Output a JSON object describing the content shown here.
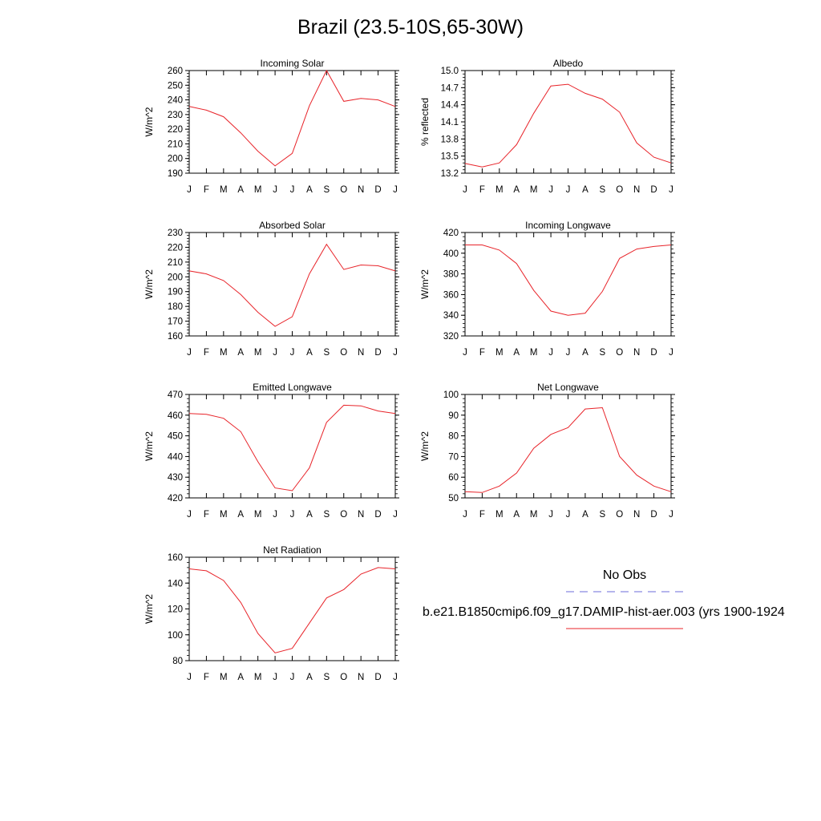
{
  "title": "Brazil (23.5-10S,65-30W)",
  "months": [
    "J",
    "F",
    "M",
    "A",
    "M",
    "J",
    "J",
    "A",
    "S",
    "O",
    "N",
    "D",
    "J"
  ],
  "colors": {
    "model": "#e8242a",
    "obs": "#6b6bd8"
  },
  "legend": {
    "obs_label": "No Obs",
    "model_label": "b.e21.B1850cmip6.f09_g17.DAMIP-hist-aer.003 (yrs 1900-1924"
  },
  "chart_data": [
    {
      "type": "line",
      "title": "Incoming Solar",
      "ylabel": "W/m^2",
      "ylim": [
        190,
        260
      ],
      "yticks": [
        190,
        200,
        210,
        220,
        230,
        240,
        250,
        260
      ],
      "series": [
        {
          "values": [
            235.5,
            233,
            228.5,
            217.5,
            205,
            195,
            203.5,
            236,
            260,
            239,
            241,
            240,
            235.5
          ]
        }
      ]
    },
    {
      "type": "line",
      "title": "Albedo",
      "ylabel": "% reflected",
      "ylim": [
        13.2,
        15.0
      ],
      "yticks": [
        "13.2",
        "13.5",
        "13.8",
        "14.1",
        "14.4",
        "14.7",
        "15.0"
      ],
      "series": [
        {
          "values": [
            13.37,
            13.31,
            13.38,
            13.7,
            14.25,
            14.73,
            14.76,
            14.6,
            14.5,
            14.27,
            13.73,
            13.48,
            13.38
          ]
        }
      ]
    },
    {
      "type": "line",
      "title": "Absorbed Solar",
      "ylabel": "W/m^2",
      "ylim": [
        160,
        230
      ],
      "yticks": [
        160,
        170,
        180,
        190,
        200,
        210,
        220,
        230
      ],
      "series": [
        {
          "values": [
            204,
            202,
            197.5,
            188,
            176,
            166.5,
            173,
            202,
            222,
            205,
            208,
            207.5,
            204
          ]
        }
      ]
    },
    {
      "type": "line",
      "title": "Incoming Longwave",
      "ylabel": "W/m^2",
      "ylim": [
        320,
        420
      ],
      "yticks": [
        320,
        340,
        360,
        380,
        400,
        420
      ],
      "series": [
        {
          "values": [
            408,
            408,
            403,
            390,
            364,
            344,
            340,
            342,
            363,
            395,
            404,
            406.5,
            408
          ]
        }
      ]
    },
    {
      "type": "line",
      "title": "Emitted Longwave",
      "ylabel": "W/m^2",
      "ylim": [
        420,
        470
      ],
      "yticks": [
        420,
        430,
        440,
        450,
        460,
        470
      ],
      "series": [
        {
          "values": [
            460.8,
            460.4,
            458.5,
            452,
            437.5,
            424.8,
            423.5,
            434.5,
            456.5,
            464.8,
            464.5,
            462,
            460.8
          ]
        }
      ]
    },
    {
      "type": "line",
      "title": "Net Longwave",
      "ylabel": "W/m^2",
      "ylim": [
        50,
        100
      ],
      "yticks": [
        50,
        60,
        70,
        80,
        90,
        100
      ],
      "series": [
        {
          "values": [
            53,
            52.6,
            55.7,
            62,
            74,
            80.7,
            84,
            93,
            93.6,
            70,
            61,
            55.7,
            53
          ]
        }
      ]
    },
    {
      "type": "line",
      "title": "Net Radiation",
      "ylabel": "W/m^2",
      "ylim": [
        80,
        160
      ],
      "yticks": [
        80,
        100,
        120,
        140,
        160
      ],
      "series": [
        {
          "values": [
            151,
            149.5,
            142,
            125,
            101,
            86,
            89.5,
            109,
            128.5,
            135,
            147,
            152,
            151
          ]
        }
      ]
    }
  ]
}
